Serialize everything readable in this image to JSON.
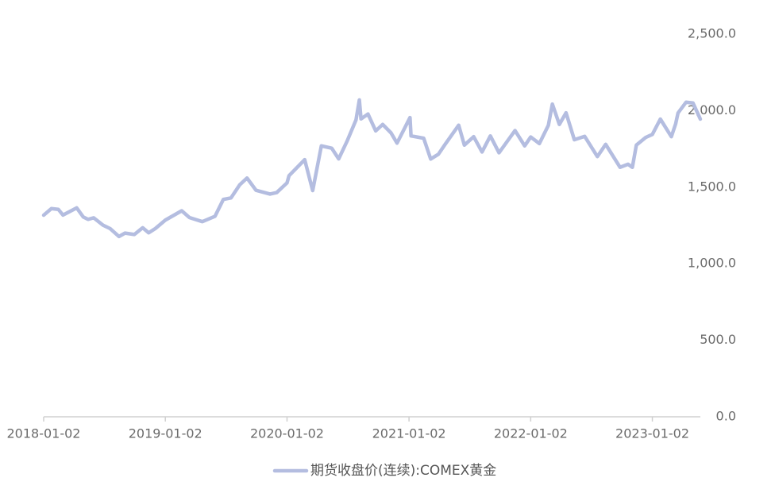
{
  "chart_data": {
    "type": "line",
    "x": [
      "2018-01-02",
      "2018-01-25",
      "2018-02-15",
      "2018-03-01",
      "2018-04-11",
      "2018-05-01",
      "2018-05-15",
      "2018-06-01",
      "2018-06-29",
      "2018-07-20",
      "2018-08-16",
      "2018-09-03",
      "2018-10-01",
      "2018-10-26",
      "2018-11-13",
      "2018-12-03",
      "2019-01-02",
      "2019-02-20",
      "2019-03-15",
      "2019-04-23",
      "2019-05-31",
      "2019-06-25",
      "2019-07-18",
      "2019-08-13",
      "2019-09-04",
      "2019-10-01",
      "2019-11-12",
      "2019-12-02",
      "2020-01-02",
      "2020-01-08",
      "2020-02-24",
      "2020-03-19",
      "2020-04-14",
      "2020-05-15",
      "2020-06-05",
      "2020-06-30",
      "2020-07-27",
      "2020-08-06",
      "2020-08-11",
      "2020-09-01",
      "2020-09-24",
      "2020-10-15",
      "2020-11-09",
      "2020-11-27",
      "2021-01-05",
      "2021-01-08",
      "2021-02-15",
      "2021-03-08",
      "2021-03-31",
      "2021-04-20",
      "2021-05-31",
      "2021-06-17",
      "2021-07-15",
      "2021-08-09",
      "2021-09-03",
      "2021-09-29",
      "2021-11-16",
      "2021-12-15",
      "2022-01-02",
      "2022-01-28",
      "2022-02-24",
      "2022-03-08",
      "2022-03-29",
      "2022-04-18",
      "2022-05-13",
      "2022-06-13",
      "2022-07-21",
      "2022-08-15",
      "2022-09-27",
      "2022-10-21",
      "2022-11-03",
      "2022-11-15",
      "2022-12-13",
      "2023-01-02",
      "2023-01-26",
      "2023-02-28",
      "2023-03-13",
      "2023-03-20",
      "2023-04-13",
      "2023-05-04",
      "2023-05-26"
    ],
    "series": [
      {
        "name": "期货收盘价(连续):COMEX黄金",
        "color": "#b4bde0",
        "values": [
          1317,
          1360,
          1355,
          1318,
          1365,
          1305,
          1290,
          1300,
          1252,
          1230,
          1178,
          1200,
          1191,
          1235,
          1202,
          1230,
          1285,
          1346,
          1302,
          1275,
          1310,
          1420,
          1430,
          1515,
          1560,
          1480,
          1455,
          1465,
          1528,
          1575,
          1680,
          1478,
          1770,
          1755,
          1685,
          1800,
          1940,
          2070,
          1946,
          1978,
          1868,
          1910,
          1855,
          1788,
          1955,
          1835,
          1820,
          1684,
          1715,
          1779,
          1905,
          1775,
          1830,
          1730,
          1835,
          1725,
          1870,
          1770,
          1828,
          1785,
          1904,
          2043,
          1910,
          1986,
          1810,
          1832,
          1700,
          1780,
          1630,
          1650,
          1630,
          1775,
          1825,
          1845,
          1945,
          1830,
          1915,
          1985,
          2055,
          2050,
          1945
        ]
      }
    ],
    "xticks": [
      "2018-01-02",
      "2019-01-02",
      "2020-01-02",
      "2021-01-02",
      "2022-01-02",
      "2023-01-02"
    ],
    "ylim": [
      0,
      2500
    ],
    "yticks": [
      {
        "value": 0,
        "label": "0.0"
      },
      {
        "value": 500,
        "label": "500.0"
      },
      {
        "value": 1000,
        "label": "1,000.0"
      },
      {
        "value": 1500,
        "label": "1,500.0"
      },
      {
        "value": 2000,
        "label": "2,000.0"
      },
      {
        "value": 2500,
        "label": "2,500.0"
      }
    ],
    "legend": "bottom"
  }
}
